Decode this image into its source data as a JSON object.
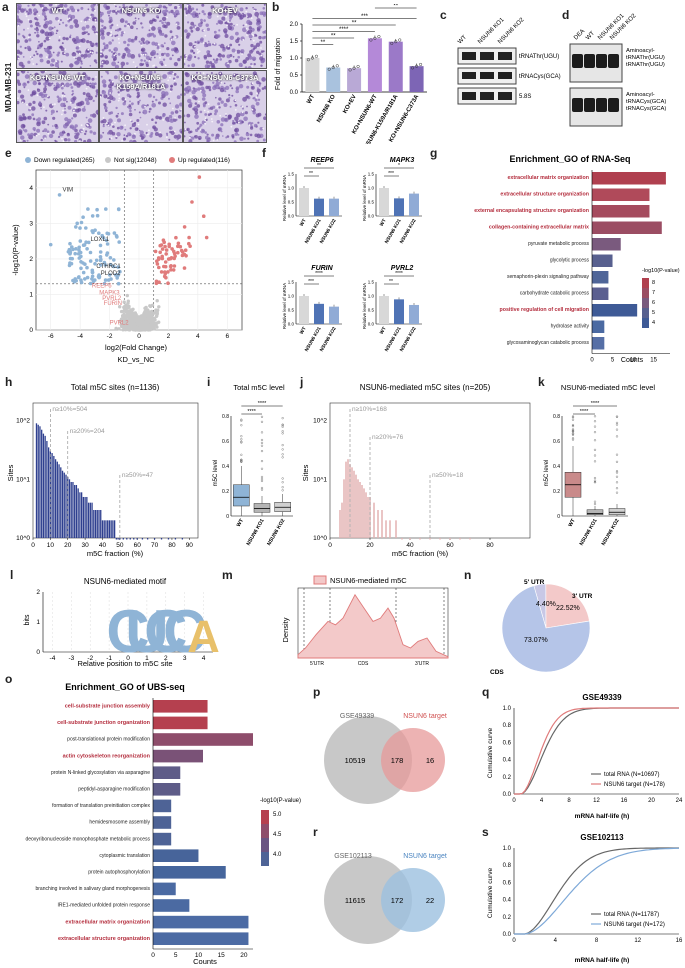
{
  "figure": {
    "panel_labels": [
      "a",
      "b",
      "c",
      "d",
      "e",
      "f",
      "g",
      "h",
      "i",
      "j",
      "k",
      "l",
      "m",
      "n",
      "o",
      "p",
      "q",
      "r",
      "s"
    ],
    "colors": {
      "purple_stain": "#6d4c9f",
      "gray": "#c8c8c8",
      "blue": "#8fb4d6",
      "red": "#e07b7b",
      "pink": "#e4b2b2",
      "navy": "#2e3f8f",
      "venn_gray": "#b5b5b5",
      "venn_red": "#e79a9a",
      "venn_blue": "#9cc0e0"
    }
  },
  "panel_a": {
    "cell_line": "MDA-MB-231",
    "images": [
      "WT",
      "NSUN6 KO",
      "KO+EV",
      "KO+NSUN6-WT",
      "KO+NSUN6-K159A/R181A",
      "KO+NSUN6-C373A"
    ]
  },
  "panel_b": {
    "chart_data": {
      "type": "bar",
      "title": "",
      "ylabel": "Fold of migration",
      "categories": [
        "WT",
        "NSUN6 KO",
        "KO+EV",
        "KO+NSUN6-WT",
        "KO+NSUN6-K159A/R181A",
        "KO+NSUN6-C373A"
      ],
      "values": [
        1.0,
        0.72,
        0.7,
        1.58,
        1.48,
        0.76
      ],
      "ylim": [
        0,
        2.0
      ],
      "yticks": [
        "0.0",
        "0.5",
        "1.0",
        "1.5",
        "2.0"
      ],
      "bar_colors": [
        "#d8d8d8",
        "#a9c2de",
        "#b9a9d6",
        "#b489d8",
        "#9b79c8",
        "#7d65b5"
      ],
      "significance": [
        "**",
        "**",
        "****",
        "**",
        "***",
        "**"
      ]
    }
  },
  "panel_c": {
    "lanes": [
      "WT",
      "NSUN6 KO1",
      "NSUN6 KO2"
    ],
    "bands": [
      "tRNAThr(UGU)",
      "tRNACys(GCA)",
      "5.8S"
    ]
  },
  "panel_d": {
    "lanes": [
      "DEA",
      "WT",
      "NSUN6 KO1",
      "NSUN6 KO2"
    ],
    "labels_top": [
      "Aminoacyl-",
      "tRNAThr(UGU)",
      "tRNAThr(UGU)"
    ],
    "labels_bottom": [
      "Aminoacyl-",
      "tRNACys(GCA)",
      "tRNACys(GCA)"
    ]
  },
  "panel_e": {
    "chart_data": {
      "type": "scatter",
      "title": "",
      "xlabel": "log2(Fold Change)",
      "xlabel2": "KD_vs_NC",
      "ylabel": "-log10(P-value)",
      "xlim": [
        -7,
        7
      ],
      "ylim": [
        0,
        4.5
      ],
      "xticks": [
        "-6",
        "-4",
        "-2",
        "0",
        "2",
        "4",
        "6"
      ],
      "yticks": [
        "0",
        "1",
        "2",
        "3",
        "4"
      ],
      "legend": [
        "Down regulated(265)",
        "Not sig(12048)",
        "Up regulated(116)"
      ],
      "annotations": [
        {
          "label": "VIM",
          "x": -5.2,
          "y": 3.9
        },
        {
          "label": "LOXL1",
          "x": -3.3,
          "y": 2.5
        },
        {
          "label": "CTHRC1",
          "x": -2.9,
          "y": 1.75
        },
        {
          "label": "PLOD2",
          "x": -2.6,
          "y": 1.55
        },
        {
          "label": "REEP6",
          "x": -3.2,
          "y": 1.2
        },
        {
          "label": "MAPK3",
          "x": -2.7,
          "y": 1.0
        },
        {
          "label": "PVRL2",
          "x": -2.5,
          "y": 0.85
        },
        {
          "label": "FURIN",
          "x": -2.4,
          "y": 0.7
        },
        {
          "label": "PVRL2",
          "x": -2.0,
          "y": 0.15
        }
      ]
    }
  },
  "panel_f": {
    "chart_data": [
      {
        "type": "bar",
        "title": "REEP6",
        "ylabel": "Relative level of mRNA",
        "categories": [
          "WT",
          "NSUN6 KO1",
          "NSUN6 KO2"
        ],
        "values": [
          1.0,
          0.62,
          0.62
        ],
        "ylim": [
          0,
          1.5
        ],
        "significance": [
          "**",
          "**"
        ]
      },
      {
        "type": "bar",
        "title": "MAPK3",
        "ylabel": "Relative level of mRNA",
        "categories": [
          "WT",
          "NSUN6 KO1",
          "NSUN6 KO2"
        ],
        "values": [
          1.0,
          0.63,
          0.8
        ],
        "ylim": [
          0,
          1.5
        ],
        "significance": [
          "***",
          "*"
        ]
      },
      {
        "type": "bar",
        "title": "FURIN",
        "ylabel": "Relative level of mRNA",
        "categories": [
          "WT",
          "NSUN6 KO1",
          "NSUN6 KO2"
        ],
        "values": [
          1.0,
          0.72,
          0.62
        ],
        "ylim": [
          0,
          1.5
        ],
        "significance": [
          "***",
          "****"
        ]
      },
      {
        "type": "bar",
        "title": "PVRL2",
        "ylabel": "Relative level of mRNA",
        "categories": [
          "WT",
          "NSUN6 KO1",
          "NSUN6 KO2"
        ],
        "values": [
          1.0,
          0.88,
          0.68
        ],
        "ylim": [
          0,
          1.5
        ],
        "significance": [
          "**",
          "****"
        ]
      }
    ]
  },
  "panel_g": {
    "chart_data": {
      "type": "bar",
      "orientation": "horizontal",
      "title": "Enrichment_GO of RNA-Seq",
      "xlabel": "Counts",
      "xticks": [
        "0",
        "5",
        "10",
        "15"
      ],
      "legend_title": "-log10(P-value)",
      "legend_ticks": [
        "8",
        "7",
        "6",
        "5",
        "4"
      ],
      "categories": [
        "extracellular matrix organization",
        "extracellular structure organization",
        "external encapsulating structure organization",
        "collagen-containing extracellular matrix",
        "pyruvate metabolic process",
        "glycolytic process",
        "semaphorin-plexin signaling pathway",
        "carbohydrate catabolic process",
        "positive regulation of cell migration",
        "hydrolase activity",
        "glycosaminoglycan catabolic process"
      ],
      "values": [
        18,
        14,
        14,
        17,
        7,
        5,
        4,
        4,
        11,
        3,
        3
      ],
      "highlight": [
        true,
        true,
        true,
        true,
        false,
        false,
        false,
        false,
        true,
        false,
        false
      ],
      "bar_colors": [
        "#b0404f",
        "#b04a5a",
        "#a54b5e",
        "#9b4d63",
        "#7a5a7e",
        "#58608f",
        "#4f6598",
        "#5b5f90",
        "#3e5a96",
        "#4b6aa2",
        "#566fa6"
      ]
    }
  },
  "panel_h": {
    "chart_data": {
      "type": "bar",
      "title": "Total m5C sites (n=1136)",
      "xlabel": "m5C fraction (%)",
      "ylabel": "Sites",
      "scale": "log",
      "xticks": [
        "0",
        "10",
        "20",
        "30",
        "40",
        "50",
        "60",
        "70",
        "80",
        "90"
      ],
      "yticks": [
        "10^0",
        "10^1",
        "10^2"
      ],
      "annotations": [
        "n≥10%=504",
        "n≥20%=204",
        "n≥50%=47"
      ],
      "x": [
        2,
        3,
        4,
        5,
        6,
        7,
        8,
        9,
        10,
        11,
        12,
        13,
        14,
        15,
        16,
        17,
        18,
        19,
        20,
        21,
        22,
        23,
        24,
        25,
        26,
        27,
        28,
        29,
        30,
        31,
        32,
        33,
        34,
        35,
        36,
        37,
        38,
        39,
        40,
        41,
        42,
        43,
        44,
        45,
        46,
        47,
        48,
        49,
        50,
        52,
        54,
        56,
        58,
        60,
        63,
        66,
        70,
        74,
        78,
        82,
        86
      ],
      "values": [
        90,
        85,
        80,
        70,
        60,
        55,
        45,
        35,
        30,
        28,
        25,
        22,
        20,
        18,
        16,
        14,
        13,
        12,
        11,
        10,
        9,
        9,
        8,
        8,
        7,
        6,
        6,
        5,
        5,
        5,
        4,
        4,
        4,
        3,
        3,
        3,
        3,
        3,
        2,
        2,
        2,
        2,
        2,
        2,
        2,
        2,
        1,
        1,
        1,
        1,
        1,
        1,
        1,
        1,
        1,
        1,
        1,
        1,
        1,
        1,
        1
      ]
    }
  },
  "panel_i": {
    "chart_data": {
      "type": "box",
      "title": "Total m5C level",
      "ylabel": "m5C level",
      "categories": [
        "WT",
        "NSUN6 KO1",
        "NSUN6 KO2"
      ],
      "median": [
        0.15,
        0.06,
        0.07
      ],
      "q1": [
        0.08,
        0.03,
        0.035
      ],
      "q3": [
        0.25,
        0.1,
        0.11
      ],
      "significance": [
        "****",
        "****"
      ]
    }
  },
  "panel_j": {
    "chart_data": {
      "type": "bar",
      "title": "NSUN6-mediated m5C sites (n=205)",
      "xlabel": "m5C fraction (%)",
      "ylabel": "Sites",
      "scale": "log",
      "xticks": [
        "0",
        "20",
        "40",
        "60",
        "80"
      ],
      "yticks": [
        "10^0",
        "10^1",
        "10^2"
      ],
      "annotations": [
        "n≥10%=168",
        "n≥20%=76",
        "n≥50%=18"
      ],
      "x": [
        5,
        6,
        7,
        8,
        9,
        10,
        11,
        12,
        13,
        14,
        15,
        16,
        17,
        18,
        19,
        20,
        22,
        24,
        26,
        28,
        30,
        33,
        36,
        40,
        45,
        50,
        55,
        60,
        65,
        70
      ],
      "values": [
        3,
        4,
        10,
        20,
        22,
        18,
        16,
        14,
        12,
        10,
        9,
        8,
        7,
        6,
        5,
        5,
        4,
        3,
        3,
        2,
        2,
        2,
        1,
        1,
        1,
        1,
        1,
        1,
        1,
        1
      ]
    }
  },
  "panel_k": {
    "chart_data": {
      "type": "box",
      "title": "NSUN6-mediated m5C level",
      "ylabel": "m5C level",
      "categories": [
        "WT",
        "NSUN6 KO1",
        "NSUN6 KO2"
      ],
      "median": [
        0.25,
        0.02,
        0.03
      ],
      "q1": [
        0.15,
        0.01,
        0.01
      ],
      "q3": [
        0.35,
        0.05,
        0.06
      ],
      "significance": [
        "****",
        "****"
      ]
    }
  },
  "panel_l": {
    "title": "NSUN6-mediated motif",
    "xlabel": "Relative position to m5C site",
    "ylabel": "bits",
    "xticks": [
      "-4",
      "-3",
      "-2",
      "-1",
      "0",
      "1",
      "2",
      "3",
      "4"
    ],
    "yticks": [
      "0",
      "1",
      "2"
    ],
    "letters": [
      "C",
      "U",
      "C",
      "C",
      "A"
    ]
  },
  "panel_m": {
    "legend": "NSUN6-mediated m5C",
    "ylabel": "Density",
    "regions": [
      "5'UTR",
      "CDS",
      "3'UTR"
    ]
  },
  "panel_n": {
    "chart_data": {
      "type": "pie",
      "categories": [
        "5' UTR",
        "3' UTR",
        "CDS"
      ],
      "values": [
        4.4,
        22.52,
        73.07
      ],
      "labels": [
        "4.40%",
        "22.52%",
        "73.07%"
      ],
      "colors": [
        "#c8c8e6",
        "#f3c9c9",
        "#b5c5e8"
      ]
    }
  },
  "panel_o": {
    "chart_data": {
      "type": "bar",
      "orientation": "horizontal",
      "title": "Enrichment_GO of UBS-seq",
      "xlabel": "Counts",
      "xticks": [
        "0",
        "5",
        "10",
        "15",
        "20"
      ],
      "legend_title": "-log10(P-value)",
      "legend_ticks": [
        "5.0",
        "4.5",
        "4.0"
      ],
      "categories": [
        "cell-substrate junction assembly",
        "cell-substrate junction organization",
        "post-translational protein modification",
        "actin cytoskeleton reorganization",
        "protein N-linked glycosylation via asparagine",
        "peptidyl-asparagine modification",
        "formation of translation preinitiation complex",
        "hemidesmosome assembly",
        "deoxyribonucleoside monophosphate metabolic process",
        "cytoplasmic translation",
        "protein autophosphorylation",
        "branching involved in salivary gland morphogenesis",
        "IRE1-mediated unfolded protein response",
        "extracellular matrix organization",
        "extracellular structure organization"
      ],
      "values": [
        12,
        12,
        22,
        11,
        6,
        6,
        4,
        4,
        4,
        10,
        16,
        5,
        8,
        21,
        21
      ],
      "highlight": [
        true,
        true,
        false,
        true,
        false,
        false,
        false,
        false,
        false,
        false,
        false,
        false,
        false,
        true,
        true
      ],
      "bar_colors": [
        "#b5404f",
        "#b5404f",
        "#8e4d6b",
        "#7a5277",
        "#5e5c88",
        "#5e5c88",
        "#4e6396",
        "#4e6396",
        "#4e6396",
        "#47649a",
        "#45659c",
        "#4b6aa2",
        "#4b6aa2",
        "#4c6ba4",
        "#4c6ba4"
      ]
    }
  },
  "panel_p": {
    "left_label": "GSE49339",
    "right_label": "NSUN6 target",
    "left_only": "10519",
    "overlap": "178",
    "right_only": "16"
  },
  "panel_q": {
    "chart_data": {
      "type": "line",
      "title": "GSE49339",
      "xlabel": "mRNA half-life (h)",
      "ylabel": "Cumulative curve",
      "xticks": [
        "0",
        "4",
        "8",
        "12",
        "16",
        "20",
        "24"
      ],
      "yticks": [
        "0.0",
        "0.2",
        "0.4",
        "0.6",
        "0.8",
        "1.0"
      ],
      "series": [
        {
          "name": "total RNA (N=10697)",
          "color": "#666666"
        },
        {
          "name": "NSUN6 target (N=178)",
          "color": "#e07b7b"
        }
      ]
    }
  },
  "panel_r": {
    "left_label": "GSE102113",
    "right_label": "NSUN6 target",
    "left_only": "11615",
    "overlap": "172",
    "right_only": "22"
  },
  "panel_s": {
    "chart_data": {
      "type": "line",
      "title": "GSE102113",
      "xlabel": "mRNA half-life (h)",
      "ylabel": "Cumulative curve",
      "xticks": [
        "0",
        "4",
        "8",
        "12",
        "16"
      ],
      "yticks": [
        "0.0",
        "0.2",
        "0.4",
        "0.6",
        "0.8",
        "1.0"
      ],
      "series": [
        {
          "name": "total RNA (N=11787)",
          "color": "#666666"
        },
        {
          "name": "NSUN6 target (N=172)",
          "color": "#7ea9d8"
        }
      ]
    }
  }
}
